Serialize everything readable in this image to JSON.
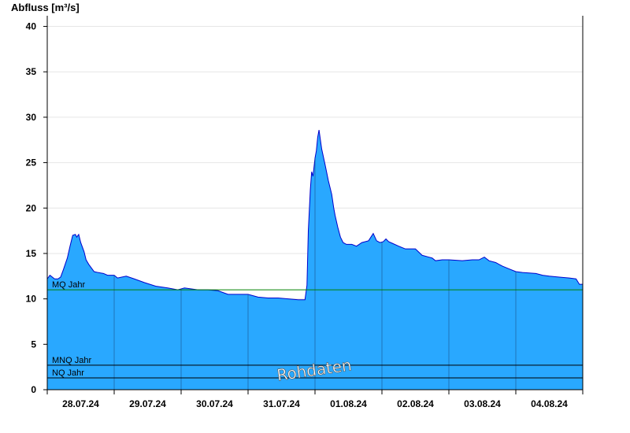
{
  "chart_data": {
    "type": "area",
    "ylabel": "Abfluss [m³/s]",
    "ylim": [
      0,
      41
    ],
    "yticks": [
      0,
      5,
      10,
      15,
      20,
      25,
      30,
      35,
      40
    ],
    "xlim": [
      0,
      8
    ],
    "xticks": [
      {
        "x": 0.5,
        "label": "28.07.24"
      },
      {
        "x": 1.5,
        "label": "29.07.24"
      },
      {
        "x": 2.5,
        "label": "30.07.24"
      },
      {
        "x": 3.5,
        "label": "31.07.24"
      },
      {
        "x": 4.5,
        "label": "01.08.24"
      },
      {
        "x": 5.5,
        "label": "02.08.24"
      },
      {
        "x": 6.5,
        "label": "03.08.24"
      },
      {
        "x": 7.5,
        "label": "04.08.24"
      }
    ],
    "day_separators": [
      1,
      2,
      3,
      4,
      5,
      6,
      7
    ],
    "grid": true,
    "colors": {
      "area": "#29a8ff",
      "line": "#0000cc",
      "mq": "#008000",
      "ref": "#000000",
      "grid": "#e6e6e6"
    },
    "reference_lines": [
      {
        "name": "MQ Jahr",
        "value": 11.0
      },
      {
        "name": "MNQ Jahr",
        "value": 2.7
      },
      {
        "name": "NQ Jahr",
        "value": 1.3
      }
    ],
    "annotation": "Rohdaten",
    "series": [
      {
        "x": [
          0,
          0.04,
          0.11,
          0.16,
          0.2,
          0.24,
          0.3,
          0.34,
          0.38,
          0.42,
          0.44,
          0.47,
          0.5,
          0.55,
          0.58,
          0.62,
          0.66,
          0.7,
          0.76,
          0.84,
          0.9,
          1.0,
          1.05,
          1.18,
          1.3,
          1.45,
          1.62,
          1.8,
          1.95,
          2.0,
          2.05,
          2.25,
          2.4,
          2.55,
          2.7,
          2.8,
          3.0,
          3.15,
          3.3,
          3.45,
          3.6,
          3.75,
          3.85,
          3.88,
          3.9,
          3.93,
          3.95,
          3.97,
          4.0,
          4.02,
          4.04,
          4.06,
          4.1,
          4.15,
          4.2,
          4.25,
          4.28,
          4.3,
          4.34,
          4.38,
          4.42,
          4.47,
          4.55,
          4.62,
          4.7,
          4.8,
          4.87,
          4.92,
          4.97,
          5.02,
          5.06,
          5.1,
          5.16,
          5.25,
          5.35,
          5.5,
          5.6,
          5.7,
          5.75,
          5.8,
          5.9,
          6.0,
          6.2,
          6.35,
          6.45,
          6.53,
          6.6,
          6.7,
          6.8,
          6.9,
          7.0,
          7.1,
          7.3,
          7.4,
          7.5,
          7.65,
          7.8,
          7.9,
          7.95,
          8.0
        ],
        "y": [
          12.2,
          12.6,
          12.2,
          12.2,
          12.4,
          13.2,
          14.5,
          15.8,
          17.0,
          17.1,
          16.8,
          17.1,
          16.2,
          15.2,
          14.3,
          13.8,
          13.4,
          13.0,
          12.9,
          12.8,
          12.6,
          12.6,
          12.3,
          12.5,
          12.2,
          11.8,
          11.4,
          11.2,
          11.0,
          11.1,
          11.2,
          11.0,
          11.0,
          10.9,
          10.5,
          10.5,
          10.5,
          10.2,
          10.1,
          10.1,
          10.0,
          9.9,
          9.9,
          11.5,
          17.5,
          22.0,
          24.0,
          23.5,
          25.5,
          26.3,
          27.8,
          28.6,
          26.5,
          24.8,
          23.0,
          21.5,
          20.0,
          19.2,
          17.9,
          16.8,
          16.2,
          16.0,
          16.0,
          15.8,
          16.2,
          16.4,
          17.2,
          16.4,
          16.2,
          16.3,
          16.6,
          16.3,
          16.1,
          15.8,
          15.5,
          15.5,
          14.8,
          14.6,
          14.5,
          14.2,
          14.3,
          14.3,
          14.2,
          14.3,
          14.3,
          14.6,
          14.2,
          14.0,
          13.6,
          13.3,
          13.0,
          12.9,
          12.8,
          12.6,
          12.5,
          12.4,
          12.3,
          12.2,
          11.6,
          11.6
        ]
      }
    ]
  }
}
